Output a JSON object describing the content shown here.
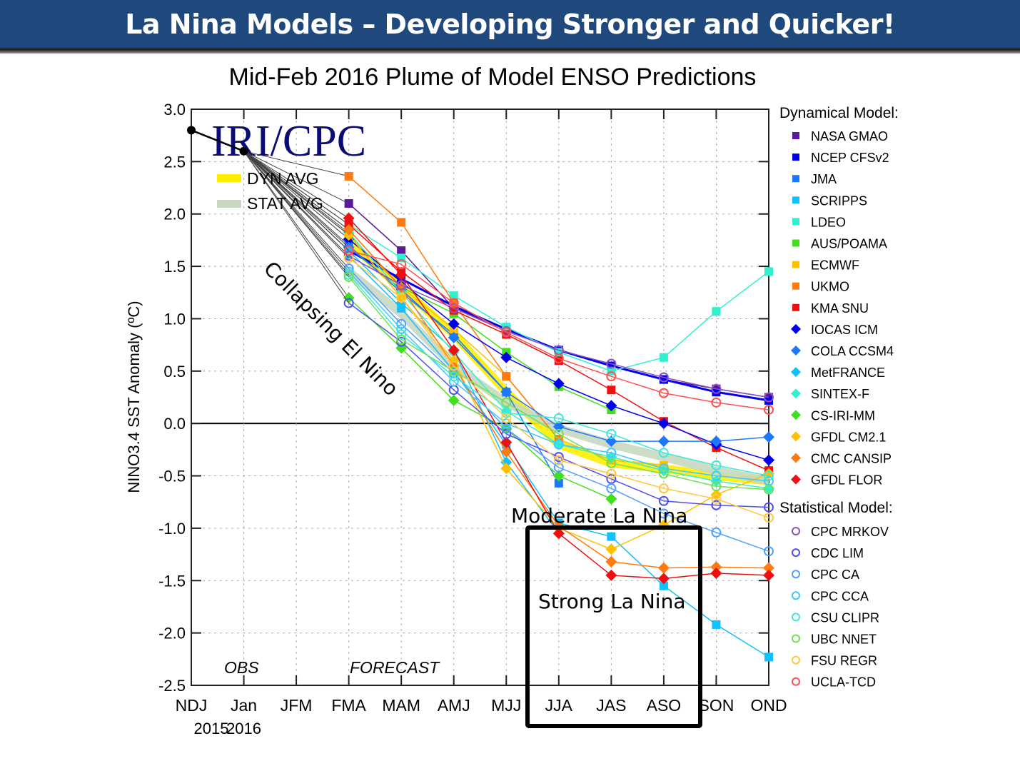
{
  "slide": {
    "title": "La Nina Models – Developing Stronger and Quicker!",
    "banner_color": "#1f497d"
  },
  "annotations": {
    "collapsing": "Collapsing El Nino",
    "moderate": "Moderate La Nina",
    "strong": "Strong La Nina",
    "box_spans": [
      "JJA",
      "JAS",
      "ASO"
    ]
  },
  "chart_data": {
    "type": "line",
    "title": "Mid-Feb 2016 Plume of Model ENSO Predictions",
    "xlabel": "",
    "ylabel": "NINO3.4 SST Anomaly (ºC)",
    "ylim": [
      -2.5,
      3.0
    ],
    "yticks": [
      "3.0",
      "2.5",
      "2.0",
      "1.5",
      "1.0",
      "0.5",
      "0.0",
      "-0.5",
      "-1.0",
      "-1.5",
      "-2.0",
      "-2.5"
    ],
    "ytick_values": [
      3.0,
      2.5,
      2.0,
      1.5,
      1.0,
      0.5,
      0.0,
      -0.5,
      -1.0,
      -1.5,
      -2.0,
      -2.5
    ],
    "categories": [
      "NDJ",
      "Jan",
      "JFM",
      "FMA",
      "MAM",
      "AMJ",
      "MJJ",
      "JJA",
      "JAS",
      "ASO",
      "SON",
      "OND"
    ],
    "year_labels": [
      {
        "label": "2015",
        "under": "NDJ"
      },
      {
        "label": "2016",
        "under": "Jan"
      }
    ],
    "grid": true,
    "watermark": "IRI/CPC",
    "period_labels": {
      "obs": "OBS",
      "forecast": "FORECAST"
    },
    "observed": {
      "categories": [
        "NDJ",
        "Jan"
      ],
      "values": [
        2.8,
        2.6
      ],
      "color": "#000000"
    },
    "averages": [
      {
        "name": "DYN AVG",
        "color": "#ffee00",
        "values": [
          null,
          null,
          null,
          1.72,
          1.3,
          0.85,
          0.3,
          -0.2,
          -0.38,
          -0.43,
          -0.5,
          -0.55
        ]
      },
      {
        "name": "STAT AVG",
        "color": "#c8d8c0",
        "values": [
          null,
          null,
          null,
          1.45,
          1.05,
          0.55,
          0.2,
          -0.05,
          -0.2,
          -0.32,
          -0.45,
          -0.55
        ]
      }
    ],
    "legend_headers": {
      "dynamical": "Dynamical Model:",
      "statistical": "Statistical Model:"
    },
    "legend_placement": "right",
    "series": [
      {
        "name": "NASA GMAO",
        "group": "dynamical",
        "marker": "square",
        "color": "#5a189a",
        "values": [
          null,
          null,
          null,
          2.1,
          1.65,
          1.1,
          0.9,
          0.7,
          0.55,
          0.42,
          0.33,
          0.25
        ]
      },
      {
        "name": "NCEP CFSv2",
        "group": "dynamical",
        "marker": "square",
        "color": "#0000ee",
        "values": [
          null,
          null,
          null,
          1.65,
          1.38,
          1.12,
          0.9,
          0.7,
          0.55,
          0.42,
          0.3,
          0.22
        ]
      },
      {
        "name": "JMA",
        "group": "dynamical",
        "marker": "square",
        "color": "#1e78ff",
        "values": [
          null,
          null,
          null,
          1.7,
          1.25,
          0.85,
          0.3,
          -0.57,
          null,
          null,
          null,
          null
        ]
      },
      {
        "name": "SCRIPPS",
        "group": "dynamical",
        "marker": "square",
        "color": "#10c0ff",
        "values": [
          null,
          null,
          null,
          1.6,
          1.1,
          0.5,
          -0.2,
          -0.95,
          -1.08,
          -1.55,
          -1.92,
          -2.23
        ]
      },
      {
        "name": "LDEO",
        "group": "dynamical",
        "marker": "square",
        "color": "#30f0d0",
        "values": [
          null,
          null,
          null,
          1.9,
          1.58,
          1.22,
          0.92,
          0.68,
          0.5,
          0.63,
          1.07,
          1.45
        ]
      },
      {
        "name": "AUS/POAMA",
        "group": "dynamical",
        "marker": "square",
        "color": "#40e020",
        "values": [
          null,
          null,
          null,
          1.85,
          1.3,
          1.05,
          0.68,
          0.35,
          0.13,
          null,
          null,
          null
        ]
      },
      {
        "name": "ECMWF",
        "group": "dynamical",
        "marker": "square",
        "color": "#ffc000",
        "values": [
          null,
          null,
          null,
          1.8,
          1.3,
          0.9,
          0.45,
          -0.15,
          -0.35,
          -0.4,
          null,
          null
        ]
      },
      {
        "name": "UKMO",
        "group": "dynamical",
        "marker": "square",
        "color": "#ff7a10",
        "values": [
          null,
          null,
          null,
          2.36,
          1.92,
          1.15,
          0.45,
          -0.15,
          null,
          null,
          null,
          null
        ]
      },
      {
        "name": "KMA SNU",
        "group": "dynamical",
        "marker": "square",
        "color": "#ee1010",
        "values": [
          null,
          null,
          null,
          1.9,
          1.45,
          1.08,
          0.85,
          0.6,
          0.32,
          0.02,
          -0.23,
          -0.45
        ]
      },
      {
        "name": "IOCAS ICM",
        "group": "dynamical",
        "marker": "diamond",
        "color": "#0000ee",
        "values": [
          null,
          null,
          null,
          1.76,
          1.35,
          0.95,
          0.63,
          0.38,
          0.17,
          0.0,
          -0.2,
          -0.35
        ]
      },
      {
        "name": "COLA CCSM4",
        "group": "dynamical",
        "marker": "diamond",
        "color": "#1e78ff",
        "values": [
          null,
          null,
          null,
          1.68,
          1.28,
          0.82,
          0.3,
          -0.03,
          -0.17,
          -0.17,
          -0.17,
          -0.13
        ]
      },
      {
        "name": "MetFRANCE",
        "group": "dynamical",
        "marker": "diamond",
        "color": "#10c0ff",
        "values": [
          null,
          null,
          null,
          1.65,
          1.15,
          0.7,
          -0.37,
          -1.05,
          null,
          null,
          null,
          null
        ]
      },
      {
        "name": "SINTEX-F",
        "group": "dynamical",
        "marker": "diamond",
        "color": "#30f0d0",
        "values": [
          null,
          null,
          null,
          1.82,
          1.25,
          0.68,
          0.12,
          -0.2,
          -0.32,
          -0.45,
          -0.55,
          -0.62
        ]
      },
      {
        "name": "CS-IRI-MM",
        "group": "dynamical",
        "marker": "diamond",
        "color": "#40e020",
        "values": [
          null,
          null,
          null,
          1.2,
          0.72,
          0.22,
          -0.05,
          -0.5,
          -0.72,
          null,
          null,
          null
        ]
      },
      {
        "name": "GFDL CM2.1",
        "group": "dynamical",
        "marker": "diamond",
        "color": "#ffc000",
        "values": [
          null,
          null,
          null,
          1.8,
          1.2,
          0.6,
          -0.43,
          -1.0,
          -1.2,
          -0.97,
          -0.68,
          -0.48
        ]
      },
      {
        "name": "CMC CANSIP",
        "group": "dynamical",
        "marker": "diamond",
        "color": "#ff7a10",
        "values": [
          null,
          null,
          null,
          1.85,
          1.3,
          0.55,
          -0.27,
          -0.98,
          -1.32,
          -1.38,
          -1.37,
          -1.38
        ]
      },
      {
        "name": "GFDL FLOR",
        "group": "dynamical",
        "marker": "diamond",
        "color": "#ee1010",
        "values": [
          null,
          null,
          null,
          1.96,
          1.42,
          0.7,
          -0.18,
          -1.05,
          -1.45,
          -1.48,
          -1.43,
          -1.45
        ]
      },
      {
        "name": "CPC MRKOV",
        "group": "statistical",
        "marker": "circle",
        "color": "#9050c0",
        "values": [
          null,
          null,
          null,
          1.6,
          1.32,
          1.1,
          0.88,
          0.7,
          0.57,
          0.44,
          0.33,
          0.25
        ]
      },
      {
        "name": "CDC LIM",
        "group": "statistical",
        "marker": "circle",
        "color": "#5050ee",
        "values": [
          null,
          null,
          null,
          1.15,
          0.78,
          0.32,
          -0.1,
          -0.32,
          -0.53,
          -0.74,
          -0.78,
          -0.8
        ]
      },
      {
        "name": "CPC CA",
        "group": "statistical",
        "marker": "circle",
        "color": "#50a0ff",
        "values": [
          null,
          null,
          null,
          1.48,
          0.95,
          0.48,
          -0.05,
          -0.42,
          -0.62,
          -0.86,
          -1.04,
          -1.22
        ]
      },
      {
        "name": "CPC CCA",
        "group": "statistical",
        "marker": "circle",
        "color": "#40c8ff",
        "values": [
          null,
          null,
          null,
          1.45,
          0.9,
          0.4,
          0.0,
          -0.2,
          -0.28,
          -0.43,
          -0.5,
          -0.55
        ]
      },
      {
        "name": "CSU CLIPR",
        "group": "statistical",
        "marker": "circle",
        "color": "#40e8d8",
        "values": [
          null,
          null,
          null,
          1.42,
          0.85,
          0.45,
          0.1,
          0.05,
          -0.1,
          -0.28,
          -0.4,
          -0.5
        ]
      },
      {
        "name": "UBC NNET",
        "group": "statistical",
        "marker": "circle",
        "color": "#70e050",
        "values": [
          null,
          null,
          null,
          1.4,
          0.8,
          0.5,
          0.2,
          -0.1,
          -0.38,
          -0.48,
          -0.6,
          -0.63
        ]
      },
      {
        "name": "FSU REGR",
        "group": "statistical",
        "marker": "circle",
        "color": "#ffc840",
        "values": [
          null,
          null,
          null,
          1.58,
          1.2,
          0.55,
          0.05,
          -0.35,
          -0.48,
          -0.62,
          -0.72,
          -0.9
        ]
      },
      {
        "name": "UCLA-TCD",
        "group": "statistical",
        "marker": "circle",
        "color": "#ff5050",
        "values": [
          null,
          null,
          null,
          1.65,
          1.52,
          1.15,
          0.87,
          0.62,
          0.45,
          0.29,
          0.2,
          0.13
        ]
      }
    ]
  }
}
